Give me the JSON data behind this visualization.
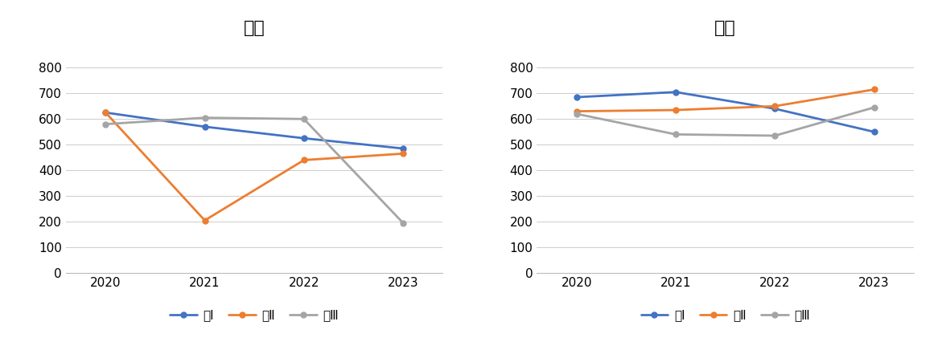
{
  "years": [
    2020,
    2021,
    2022,
    2023
  ],
  "bunkei": {
    "title": "文科",
    "series": {
      "文Ⅰ": [
        625,
        570,
        525,
        485
      ],
      "文Ⅱ": [
        625,
        205,
        440,
        465
      ],
      "文Ⅲ": [
        580,
        605,
        600,
        195
      ]
    },
    "colors": {
      "文Ⅰ": "#4472C4",
      "文Ⅱ": "#ED7D31",
      "文Ⅲ": "#A5A5A5"
    }
  },
  "rikei": {
    "title": "理科",
    "series": {
      "理Ⅰ": [
        685,
        705,
        640,
        550
      ],
      "理Ⅱ": [
        630,
        635,
        650,
        715
      ],
      "理Ⅲ": [
        620,
        540,
        535,
        645
      ]
    },
    "colors": {
      "理Ⅰ": "#4472C4",
      "理Ⅱ": "#ED7D31",
      "理Ⅲ": "#A5A5A5"
    }
  },
  "ylim": [
    0,
    900
  ],
  "yticks": [
    0,
    100,
    200,
    300,
    400,
    500,
    600,
    700,
    800
  ],
  "title_fontsize": 16,
  "tick_fontsize": 11,
  "legend_fontsize": 11,
  "background_color": "#FFFFFF",
  "panel_color": "#FFFFFF",
  "grid_color": "#CCCCCC",
  "line_width": 2.0,
  "marker": "o",
  "marker_size": 5
}
